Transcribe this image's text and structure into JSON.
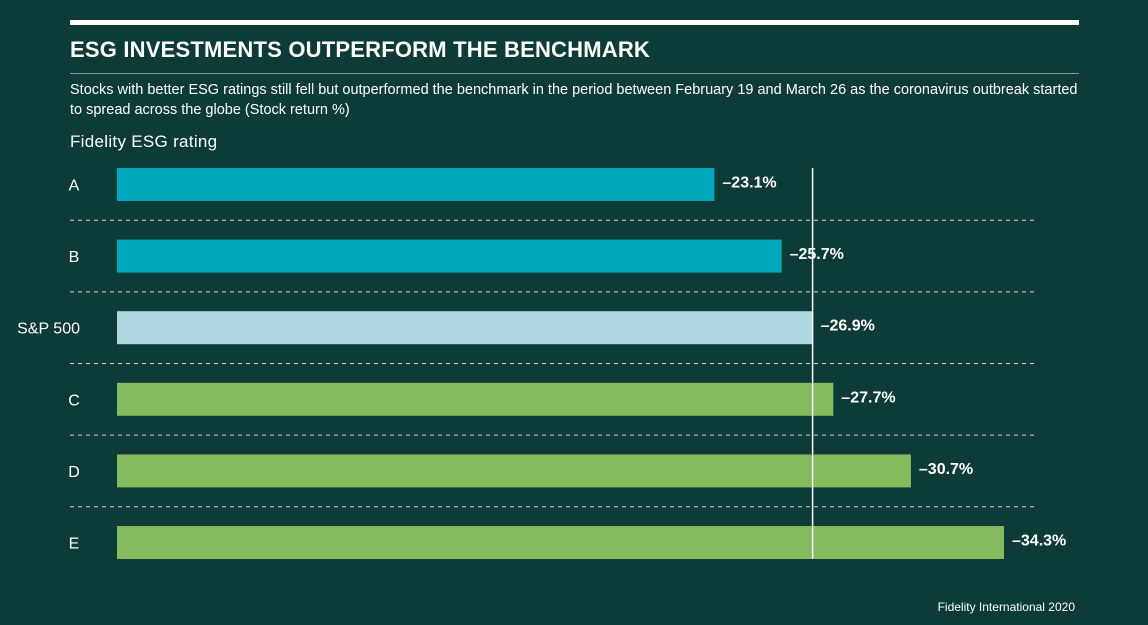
{
  "header": {
    "title": "ESG INVESTMENTS OUTPERFORM THE BENCHMARK",
    "subtitle": "Stocks with better ESG ratings still fell but outperformed the benchmark in the period between February 19 and March 26 as the coronavirus outbreak started to spread across the globe (Stock return %)"
  },
  "footer": {
    "source": "Fidelity International 2020"
  },
  "colors": {
    "background": "#0d3b38",
    "esg_high": "#00a8bd",
    "benchmark": "#add8e2",
    "esg_low": "#84b95c",
    "reference_line": "#ffffff",
    "divider": "#cfd8d6"
  },
  "chart_data": {
    "type": "bar",
    "orientation": "horizontal",
    "title": "ESG INVESTMENTS OUTPERFORM THE BENCHMARK",
    "ylabel": "Fidelity ESG rating",
    "xlabel": "",
    "categories": [
      "A",
      "B",
      "S&P 500",
      "C",
      "D",
      "E"
    ],
    "values": [
      -23.1,
      -25.7,
      -26.9,
      -27.7,
      -30.7,
      -34.3
    ],
    "value_labels": [
      "–23.1%",
      "–25.7%",
      "–26.9%",
      "–27.7%",
      "–30.7%",
      "–34.3%"
    ],
    "bar_groups": [
      "esg_high",
      "esg_high",
      "benchmark",
      "esg_low",
      "esg_low",
      "esg_low"
    ],
    "reference_value": -26.9,
    "xlim": [
      0,
      -34.3
    ],
    "grid": false,
    "dashed_row_separators": true
  }
}
